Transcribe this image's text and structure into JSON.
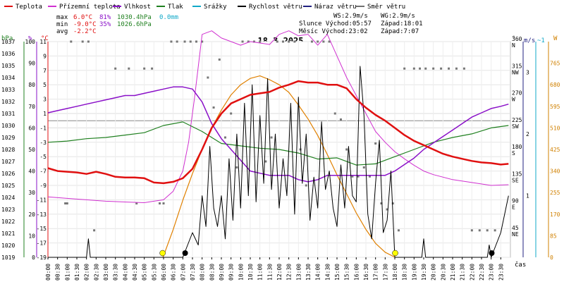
{
  "chart_data": {
    "type": "line",
    "title": "18.3.2025",
    "legend": [
      {
        "name": "Teplota",
        "color": "#e01010"
      },
      {
        "name": "Přízemní teplota",
        "color": "#d030d0"
      },
      {
        "name": "Vlhkost",
        "color": "#8a10c8"
      },
      {
        "name": "Tlak",
        "color": "#208020"
      },
      {
        "name": "Srážky",
        "color": "#10a8c8"
      },
      {
        "name": "Rychlost větru",
        "color": "#000000"
      },
      {
        "name": "Náraz větru",
        "color": "#202080"
      },
      {
        "name": "Směr větru",
        "color": "#707070"
      }
    ],
    "stats": {
      "max": [
        "max",
        "6.0°C",
        "81%",
        "1030.4hPa",
        "0.0mm"
      ],
      "min": [
        "min",
        "-9.0°C",
        "35%",
        "1026.6hPa"
      ],
      "avg": [
        "avg",
        "-2.2°C"
      ]
    },
    "info": {
      "ws": "WS:2.9m/s",
      "wg": "WG:2.9m/s",
      "sun_rise": "Slunce Východ:05:57",
      "sun_set": "Západ:18:01",
      "moon_rise": "Měsíc Východ:23:02",
      "moon_set": "Západ:7:07"
    },
    "axes": {
      "hpa": {
        "label": "hPa",
        "ticks": [
          "1037",
          "1036",
          "1035",
          "1034",
          "1033",
          "1032",
          "1031",
          "1030",
          "1029",
          "1028",
          "1027",
          "1026",
          "1025",
          "1024",
          "1023",
          "1022",
          "1021",
          "1020",
          "1019"
        ]
      },
      "pct": {
        "label": "%",
        "ticks": [
          "100",
          "90",
          "80",
          "70",
          "60",
          "50",
          "40",
          "30",
          "20",
          "10",
          "0"
        ]
      },
      "temp": {
        "label": "°C",
        "ticks": [
          "11",
          "9",
          "7",
          "5",
          "3",
          "1",
          "-1",
          "-3",
          "-5",
          "-7",
          "-9",
          "-11",
          "-13",
          "-15",
          "-17",
          "-19"
        ]
      },
      "dir": {
        "label": "°",
        "ticks": [
          "360 N",
          "315 NW",
          "270 W",
          "225 SW",
          "180 S",
          "135 SE",
          "90 E",
          "45 NE"
        ]
      },
      "wind": {
        "label": "m/s",
        "ticks": [
          "3",
          "2",
          "1"
        ],
        "top": "m/s",
        "top2": "~1"
      },
      "sun": {
        "label": "W",
        "ticks": [
          "765",
          "680",
          "595",
          "510",
          "425",
          "340",
          "255",
          "170",
          "85",
          "0"
        ]
      },
      "x_label": "čas",
      "x_ticks": [
        "00:00",
        "00:30",
        "01:00",
        "01:30",
        "02:00",
        "02:30",
        "03:00",
        "03:30",
        "04:00",
        "04:30",
        "05:00",
        "05:30",
        "06:00",
        "06:30",
        "07:00",
        "07:30",
        "08:00",
        "08:30",
        "09:00",
        "09:30",
        "10:00",
        "10:30",
        "11:00",
        "11:30",
        "12:00",
        "12:30",
        "13:00",
        "13:30",
        "14:00",
        "14:30",
        "15:00",
        "15:30",
        "16:00",
        "16:30",
        "17:00",
        "17:30",
        "18:00",
        "18:30",
        "19:00",
        "19:30",
        "20:00",
        "20:30",
        "21:00",
        "21:30",
        "22:00",
        "22:30",
        "23:00",
        "23:30"
      ]
    },
    "series": {
      "temperature_c": {
        "x_hours": [
          0,
          0.5,
          1,
          1.5,
          2,
          2.5,
          3,
          3.5,
          4,
          4.5,
          5,
          5.5,
          6,
          6.5,
          7,
          7.5,
          8,
          8.5,
          9,
          9.5,
          10,
          10.5,
          11,
          11.5,
          12,
          12.5,
          13,
          13.5,
          14,
          14.5,
          15,
          15.5,
          16,
          16.5,
          17,
          17.5,
          18,
          18.5,
          19,
          19.5,
          20,
          20.5,
          21,
          21.5,
          22,
          22.5,
          23,
          23.5,
          23.9
        ],
        "values": [
          -6.6,
          -7.0,
          -7.1,
          -7.2,
          -7.4,
          -7.1,
          -7.4,
          -7.8,
          -7.9,
          -7.9,
          -8.0,
          -8.6,
          -8.7,
          -8.5,
          -8.0,
          -6.7,
          -4.0,
          -1.0,
          1.0,
          2.4,
          3.0,
          3.6,
          3.8,
          4.0,
          4.6,
          5.0,
          5.5,
          5.3,
          5.3,
          5.0,
          5.0,
          4.5,
          3.0,
          1.8,
          0.8,
          0.0,
          -1.0,
          -2.0,
          -2.8,
          -3.4,
          -4.0,
          -4.6,
          -5.0,
          -5.3,
          -5.6,
          -5.8,
          -5.9,
          -6.1,
          -6.0
        ]
      },
      "ground_temperature_c": {
        "x_hours": [
          0,
          1,
          2,
          3,
          4,
          5,
          5.5,
          6,
          6.5,
          7,
          7.3,
          7.6,
          8.0,
          8.5,
          9,
          9.5,
          10,
          10.5,
          11,
          11.5,
          12,
          12.5,
          13,
          13.5,
          14,
          14.5,
          15,
          15.5,
          16,
          16.5,
          17,
          17.5,
          18,
          18.5,
          19,
          19.5,
          20,
          21,
          22,
          23,
          23.9
        ],
        "values": [
          -10.6,
          -10.8,
          -11.0,
          -11.2,
          -11.3,
          -11.4,
          -11.2,
          -11.0,
          -9.8,
          -7.0,
          -3.0,
          3.0,
          12.0,
          12.5,
          11.5,
          11.0,
          10.5,
          11.0,
          10.8,
          10.6,
          12.0,
          12.5,
          11.8,
          12.0,
          10.5,
          12.0,
          9.0,
          6.0,
          3.5,
          1.0,
          -1.5,
          -3.0,
          -4.3,
          -5.3,
          -6.2,
          -7.0,
          -7.5,
          -8.2,
          -8.6,
          -9.0,
          -8.9
        ]
      },
      "humidity_pct": {
        "x_hours": [
          0,
          0.5,
          1,
          1.5,
          2,
          2.5,
          3,
          3.5,
          4,
          4.5,
          5,
          5.5,
          6,
          6.5,
          7,
          7.5,
          8,
          8.5,
          9,
          9.5,
          10,
          10.5,
          11,
          11.5,
          12,
          12.5,
          13,
          13.5,
          14,
          14.5,
          15,
          15.5,
          16,
          16.5,
          17,
          17.5,
          18,
          18.5,
          19,
          19.5,
          20,
          20.5,
          21,
          21.5,
          22,
          22.5,
          23,
          23.5,
          23.9
        ],
        "values": [
          67,
          68,
          69,
          70,
          71,
          72,
          73,
          74,
          75,
          75,
          76,
          77,
          78,
          79,
          79,
          78,
          72,
          62,
          55,
          50,
          45,
          40,
          39,
          38,
          38,
          38,
          36,
          35,
          36,
          38,
          38,
          38,
          38,
          38,
          38,
          38,
          40,
          43,
          46,
          50,
          53,
          56,
          59,
          62,
          65,
          67,
          69,
          70,
          71
        ]
      },
      "pressure_hpa": {
        "x_hours": [
          0,
          1,
          2,
          3,
          4,
          5,
          6,
          7,
          8,
          9,
          10,
          11,
          12,
          13,
          14,
          15,
          16,
          17,
          18,
          19,
          20,
          21,
          22,
          23,
          23.9
        ],
        "values": [
          1028.6,
          1028.7,
          1028.9,
          1029.0,
          1029.2,
          1029.4,
          1030.0,
          1030.3,
          1029.5,
          1028.5,
          1028.3,
          1028.1,
          1028.0,
          1027.7,
          1027.2,
          1027.3,
          1026.7,
          1026.8,
          1027.4,
          1028.0,
          1028.6,
          1029.0,
          1029.3,
          1029.8,
          1030.0
        ]
      },
      "wind_speed_ms": {
        "x_hours": [
          0,
          2,
          2.1,
          2.2,
          6,
          7,
          7.5,
          7.8,
          8.0,
          8.2,
          8.4,
          8.6,
          8.8,
          9.0,
          9.2,
          9.4,
          9.6,
          9.8,
          10.0,
          10.2,
          10.4,
          10.6,
          10.8,
          11.0,
          11.2,
          11.4,
          11.6,
          11.8,
          12.0,
          12.2,
          12.4,
          12.6,
          12.8,
          13.0,
          13.2,
          13.4,
          13.6,
          13.8,
          14.0,
          14.2,
          14.4,
          14.6,
          14.8,
          15.0,
          15.2,
          15.4,
          15.6,
          15.8,
          16.0,
          16.2,
          16.4,
          16.6,
          16.8,
          17.0,
          17.2,
          17.4,
          17.6,
          17.8,
          18.0,
          19.4,
          19.5,
          19.6,
          22.8,
          22.9,
          23.0,
          23.5,
          23.9
        ],
        "values": [
          0,
          0,
          0.3,
          0,
          0,
          0,
          0.4,
          0.2,
          1.0,
          0.5,
          1.8,
          0.8,
          0.5,
          1.0,
          0.3,
          1.6,
          0.6,
          2.0,
          0.8,
          2.5,
          1.0,
          2.8,
          0.9,
          2.3,
          1.2,
          2.9,
          1.1,
          2.0,
          0.8,
          1.6,
          1.0,
          2.5,
          0.7,
          2.6,
          1.2,
          2.0,
          0.6,
          1.3,
          0.8,
          2.2,
          1.1,
          1.4,
          0.8,
          0.5,
          1.5,
          0.8,
          1.8,
          1.0,
          0.9,
          3.1,
          2.3,
          0.7,
          0.3,
          1.2,
          1.9,
          0.4,
          0.6,
          1.4,
          0,
          0,
          0.3,
          0,
          0,
          0.2,
          0,
          0.4,
          1.0
        ]
      },
      "sun_radiation_w": {
        "x_hours": [
          5.97,
          6.5,
          7,
          7.5,
          8,
          8.5,
          9,
          9.5,
          10,
          10.5,
          11,
          11.5,
          12,
          12.5,
          13,
          13.5,
          14,
          14.5,
          15,
          15.5,
          16,
          16.5,
          17,
          17.5,
          18.02
        ],
        "values": [
          0,
          110,
          225,
          330,
          425,
          510,
          580,
          640,
          680,
          705,
          715,
          700,
          680,
          650,
          600,
          545,
          480,
          405,
          325,
          250,
          175,
          110,
          55,
          20,
          0
        ]
      },
      "wind_direction_deg": {
        "x_hours": [
          0.9,
          1.0,
          1.2,
          1.8,
          2.1,
          2.4,
          3.5,
          4.2,
          4.6,
          5.0,
          5.4,
          5.8,
          6.0,
          6.4,
          6.7,
          7.1,
          7.4,
          7.7,
          8.0,
          8.3,
          8.6,
          8.9,
          9.2,
          9.5,
          9.8,
          10.1,
          10.4,
          10.7,
          11.0,
          11.3,
          11.6,
          11.9,
          12.2,
          12.5,
          12.8,
          13.1,
          13.4,
          13.7,
          14.0,
          14.3,
          14.6,
          14.9,
          15.2,
          15.5,
          15.8,
          16.1,
          16.4,
          16.7,
          17.0,
          17.3,
          17.6,
          17.9,
          18.2,
          18.5,
          19.0,
          19.3,
          19.6,
          20.0,
          20.4,
          20.8,
          21.2,
          21.6,
          22.0,
          22.4,
          22.8,
          23.2
        ],
        "values": [
          90,
          90,
          360,
          360,
          360,
          45,
          315,
          315,
          90,
          315,
          315,
          90,
          90,
          360,
          360,
          360,
          360,
          360,
          360,
          300,
          250,
          330,
          200,
          240,
          150,
          360,
          360,
          360,
          360,
          160,
          200,
          360,
          360,
          360,
          360,
          180,
          120,
          360,
          360,
          360,
          360,
          240,
          230,
          180,
          135,
          135,
          150,
          135,
          190,
          90,
          80,
          90,
          45,
          315,
          315,
          315,
          315,
          315,
          315,
          315,
          315,
          315,
          45,
          45,
          45,
          45
        ]
      },
      "sun_events": [
        {
          "x_hour": 5.95,
          "type": "sunrise"
        },
        {
          "x_hour": 18.02,
          "type": "sunset"
        },
        {
          "x_hour": 7.12,
          "type": "moonset"
        },
        {
          "x_hour": 23.03,
          "type": "moonrise"
        }
      ]
    },
    "ranges": {
      "x": [
        0,
        24
      ],
      "temperature_c": [
        -19,
        11
      ],
      "humidity_pct": [
        0,
        100
      ],
      "pressure_hpa": [
        1019,
        1037
      ],
      "wind_direction_deg": [
        0,
        360
      ],
      "wind_speed_ms": [
        0,
        3.5
      ],
      "sun_radiation_w": [
        0,
        850
      ]
    },
    "grid": true
  }
}
